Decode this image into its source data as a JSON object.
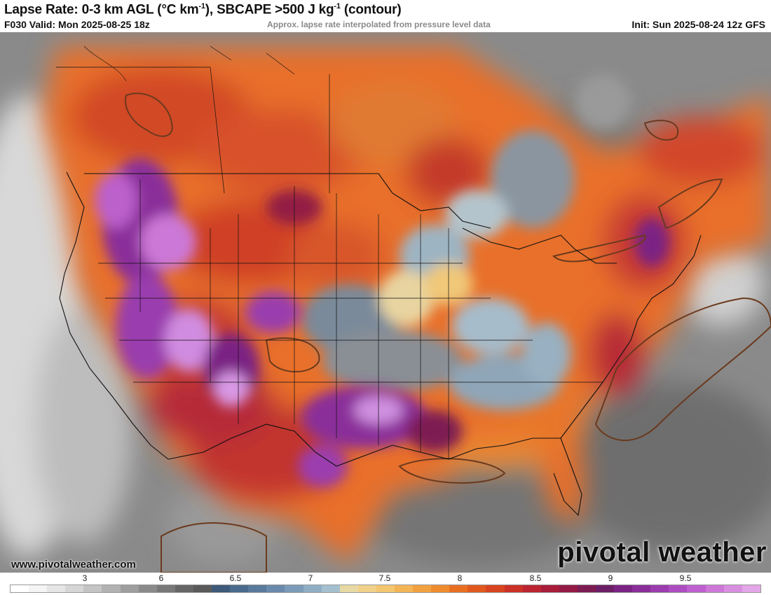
{
  "header": {
    "title_main": "Lapse Rate: 0-3 km AGL (°C km",
    "title_sup1": "-1",
    "title_mid": "), SBCAPE >500 J kg",
    "title_sup2": "-1",
    "title_end": " (contour)",
    "valid": "F030 Valid: Mon 2025-08-25 18z",
    "note": "Approx. lapse rate interpolated from pressure level data",
    "init": "Init: Sun 2025-08-24 12z GFS"
  },
  "map": {
    "site": "www.pivotalweather.com",
    "brand": "pivotal weather"
  },
  "colorbar": {
    "ticks": [
      "3",
      "6",
      "6.5",
      "7",
      "7.5",
      "8",
      "8.5",
      "9",
      "9.5"
    ],
    "colors": [
      "#ffffff",
      "#f4f4f4",
      "#e6e6e6",
      "#d6d6d6",
      "#c4c4c4",
      "#b2b2b2",
      "#9e9e9e",
      "#8a8a8a",
      "#787878",
      "#666666",
      "#5a5a5a",
      "#3e5a7a",
      "#4a6b8c",
      "#587a9c",
      "#6a8aac",
      "#7b9bb8",
      "#8faec4",
      "#a4c0cf",
      "#e8d9a4",
      "#f1d189",
      "#f3c670",
      "#f4b556",
      "#f2a140",
      "#ef8c2e",
      "#e86f22",
      "#e0581e",
      "#d8441f",
      "#cc3127",
      "#bb2430",
      "#a81d3a",
      "#931a45",
      "#7d1c53",
      "#6c1f66",
      "#7a2384",
      "#8a2e9a",
      "#9b3caf",
      "#ad4cc1",
      "#be60cf",
      "#cd78d9",
      "#d98fe0",
      "#e3a6e7"
    ]
  }
}
